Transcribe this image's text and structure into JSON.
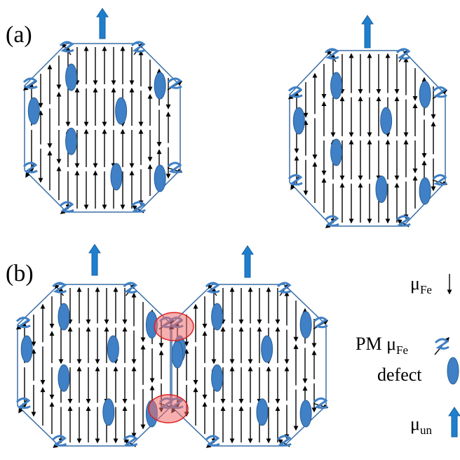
{
  "panels": [
    {
      "label": "(a)"
    },
    {
      "label": "(b)"
    }
  ],
  "legend": [
    {
      "symbol": "μ",
      "subscript": "Fe"
    },
    {
      "symbol": "PM μ",
      "subscript": "Fe"
    },
    {
      "text": "defect"
    },
    {
      "symbol": "μ",
      "subscript": "un"
    }
  ]
}
